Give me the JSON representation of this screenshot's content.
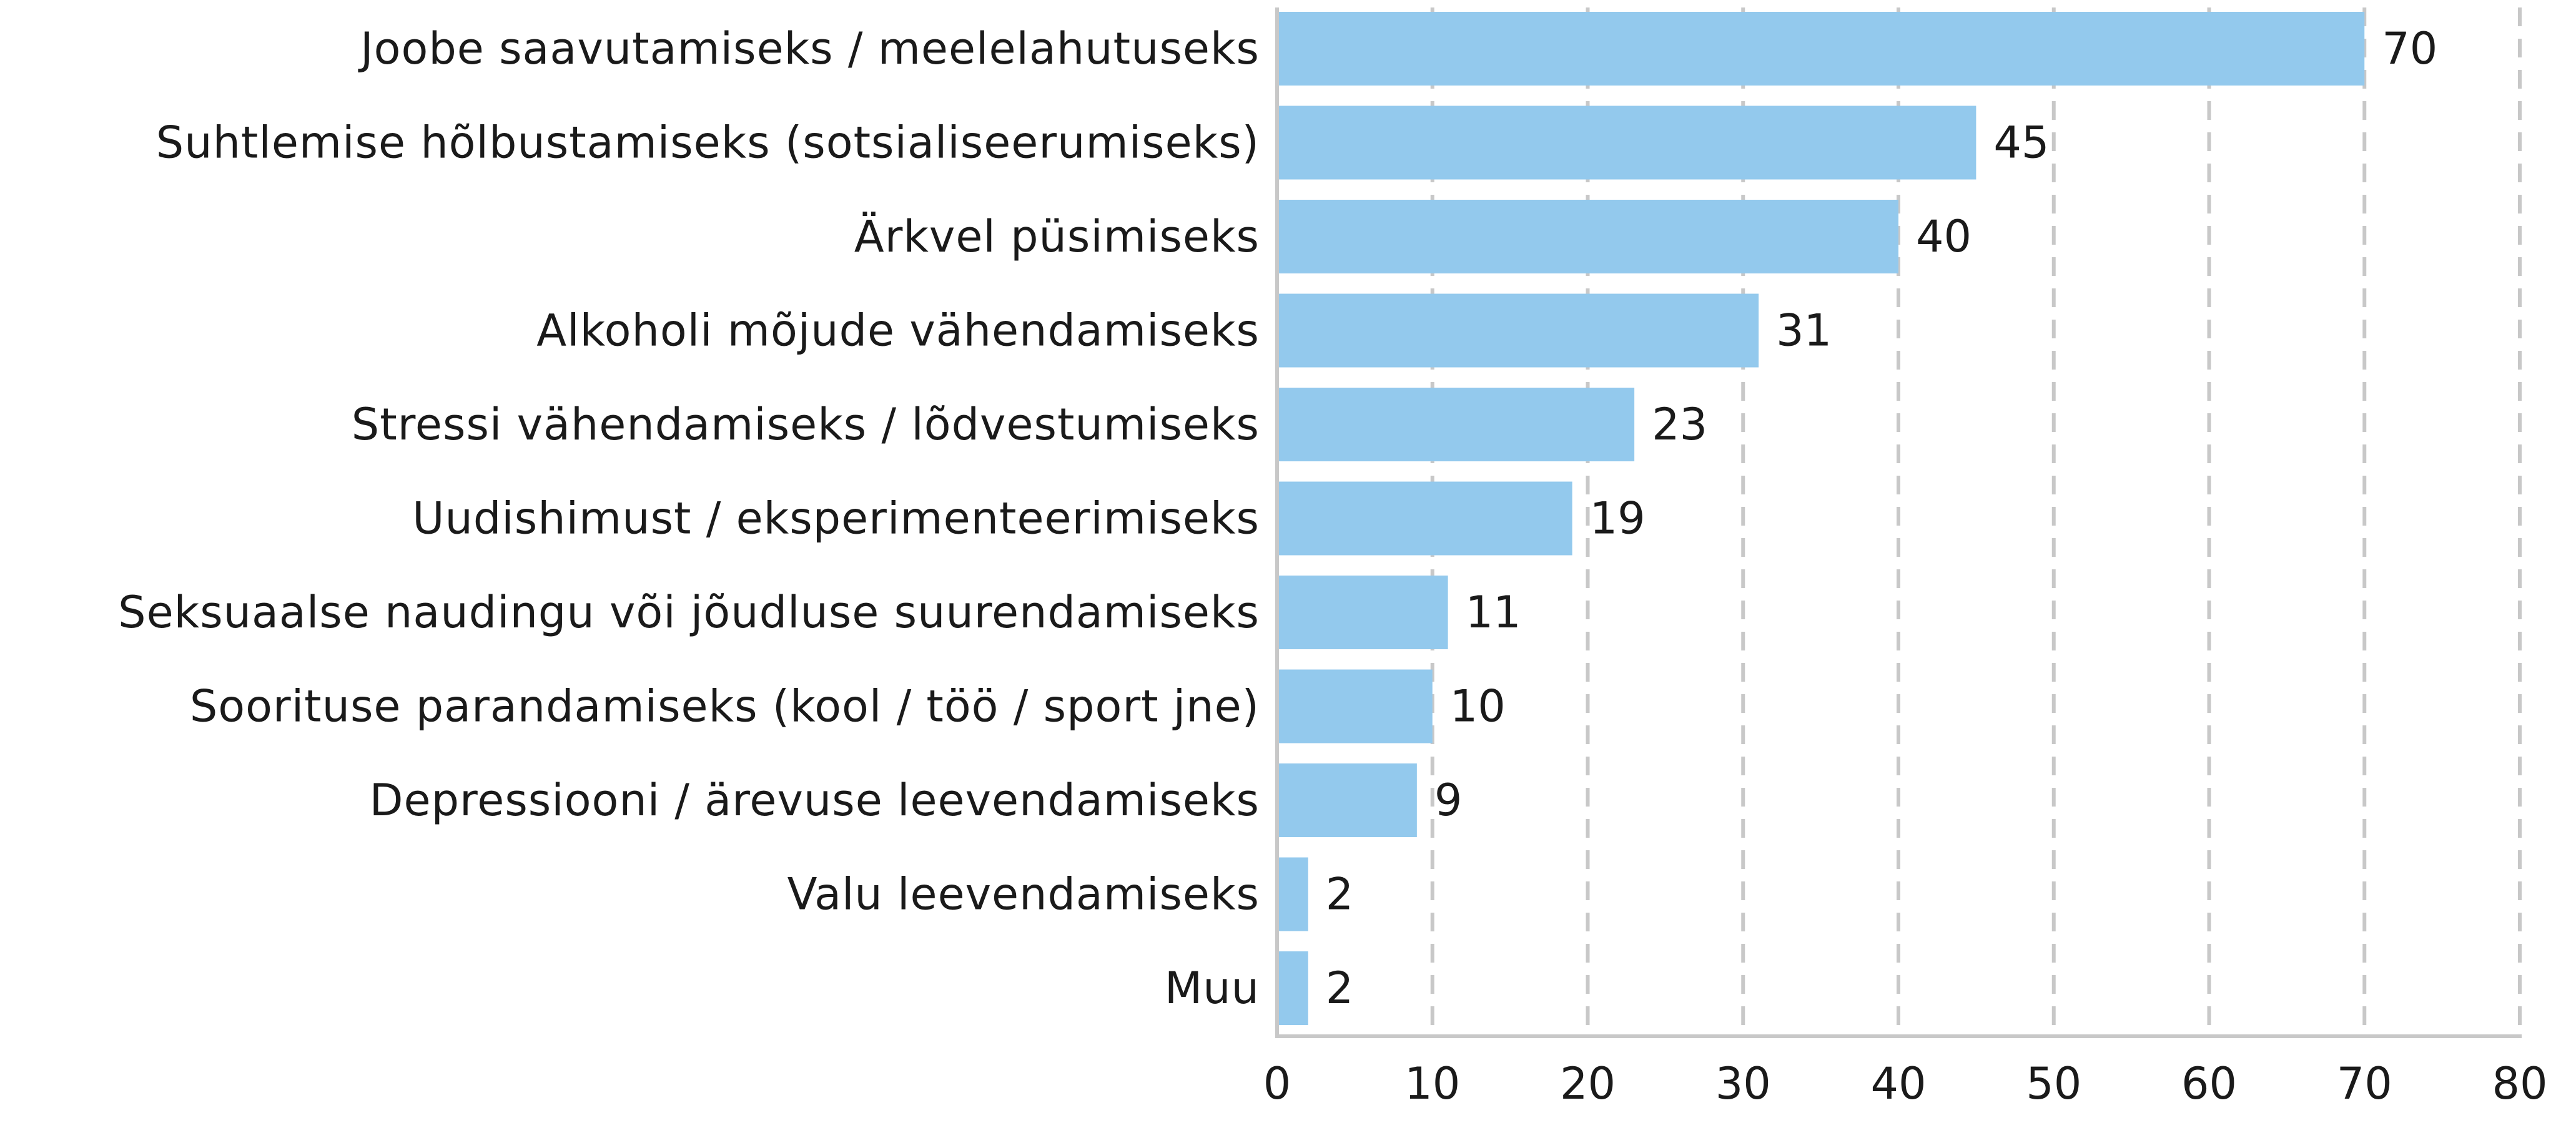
{
  "chart_data": {
    "type": "bar",
    "orientation": "horizontal",
    "title": "",
    "xlabel": "",
    "ylabel": "",
    "categories": [
      "Joobe saavutamiseks / meelelahutuseks",
      "Suhtlemise hõlbustamiseks (sotsialiseerumiseks)",
      "Ärkvel püsimiseks",
      "Alkoholi mõjude vähendamiseks",
      "Stressi vähendamiseks / lõdvestumiseks",
      "Uudishimust / eksperimenteerimiseks",
      "Seksuaalse naudingu või jõudluse suurendamiseks",
      "Soorituse parandamiseks (kool / töö / sport jne)",
      "Depressiooni / ärevuse leevendamiseks",
      "Valu leevendamiseks",
      "Muu"
    ],
    "values": [
      70,
      45,
      40,
      31,
      23,
      19,
      11,
      10,
      9,
      2,
      2
    ],
    "xlim": [
      0,
      80
    ],
    "xticks": [
      0,
      10,
      20,
      30,
      40,
      50,
      60,
      70,
      80
    ],
    "grid": "vertical-dashed",
    "legend": "none",
    "bar_color": "#93c9ed"
  }
}
